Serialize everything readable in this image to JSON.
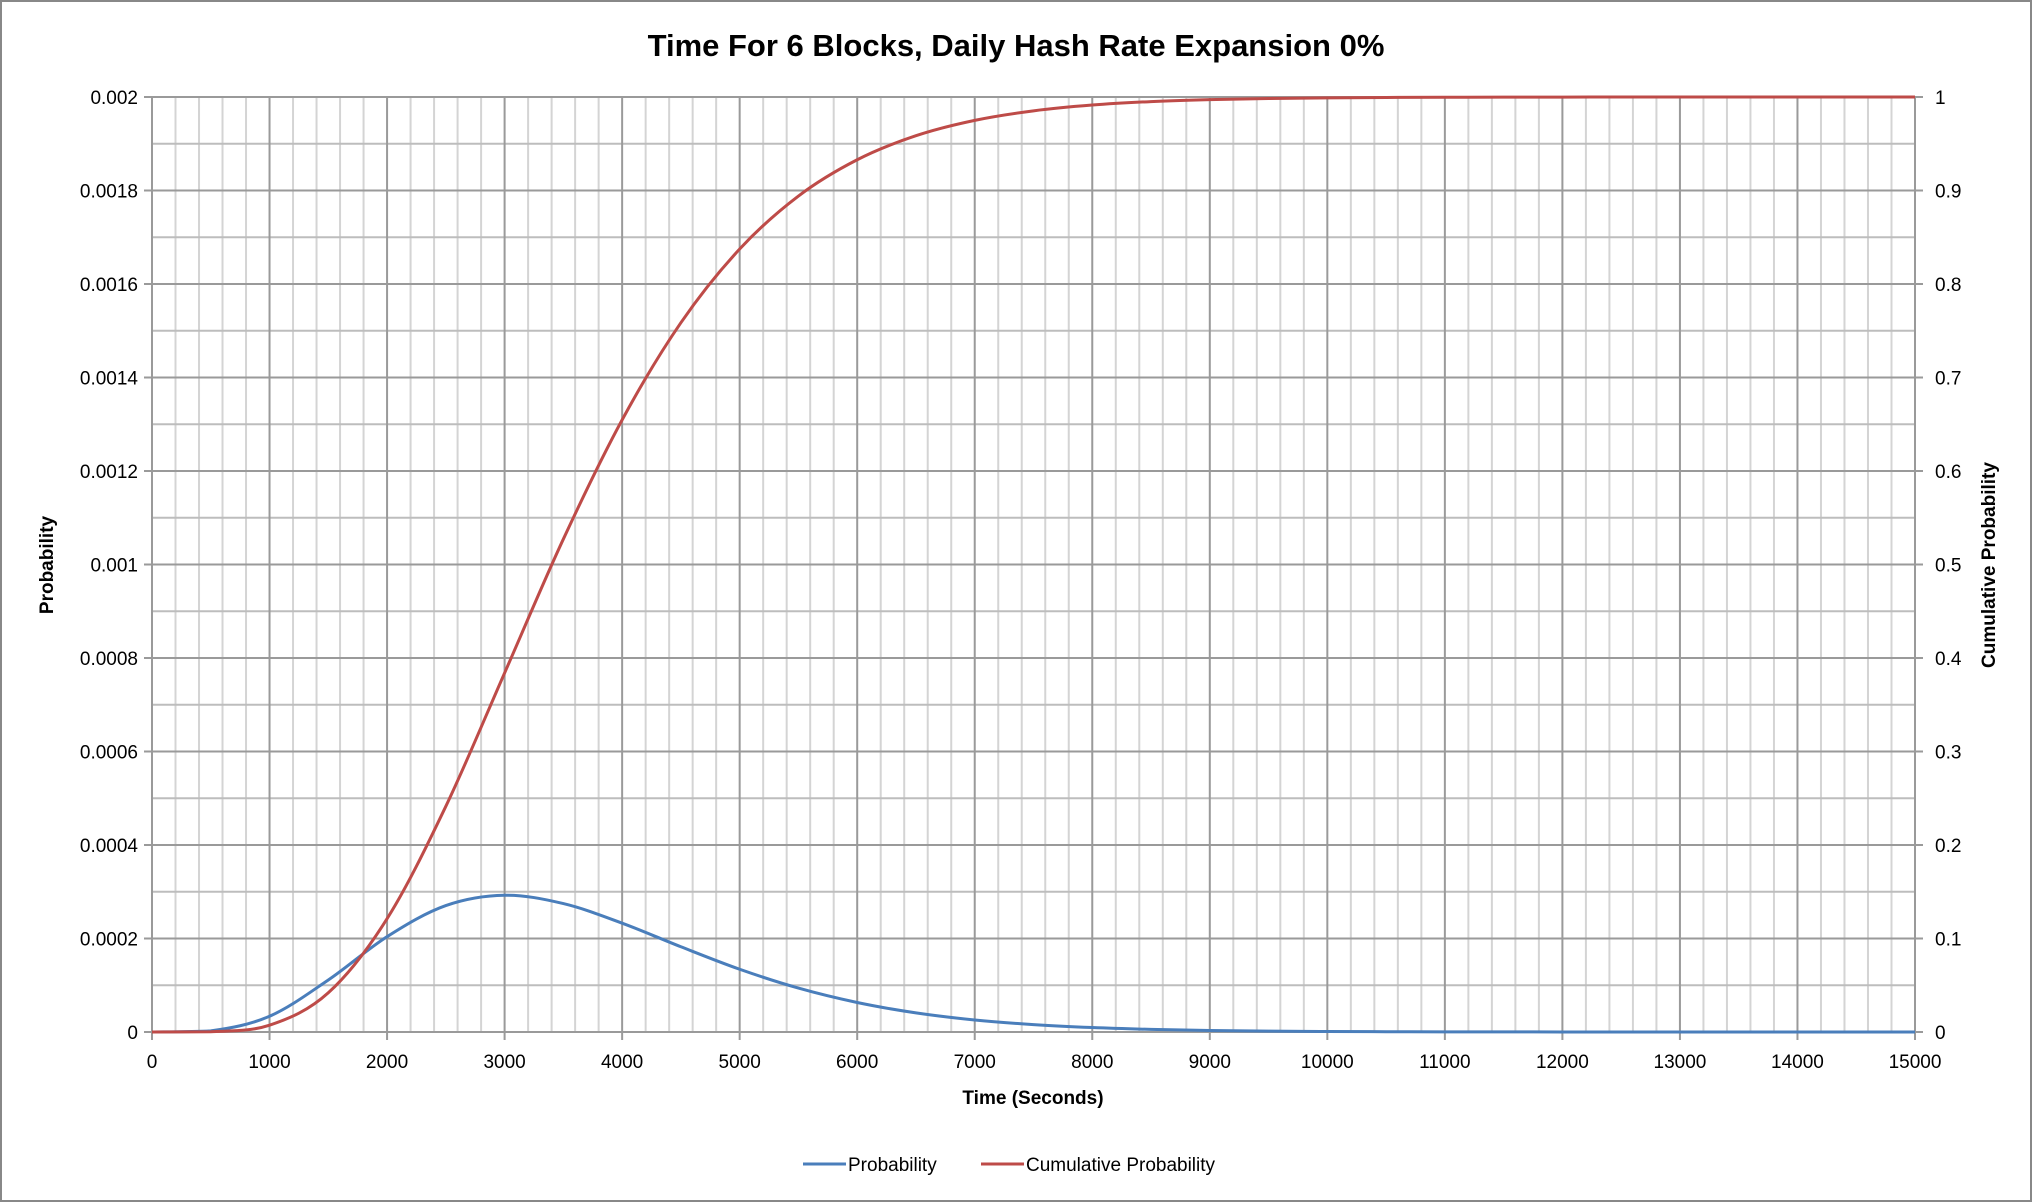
{
  "chart_data": {
    "type": "line",
    "title": "Time For 6 Blocks, Daily Hash Rate Expansion 0%",
    "xlabel": "Time (Seconds)",
    "ylabel": "Probability",
    "y2label": "Cumulative Probability",
    "xlim": [
      0,
      15000
    ],
    "ylim": [
      0,
      0.002
    ],
    "y2lim": [
      0,
      1
    ],
    "xticks": [
      "0",
      "1000",
      "2000",
      "3000",
      "4000",
      "5000",
      "6000",
      "7000",
      "8000",
      "9000",
      "10000",
      "11000",
      "12000",
      "13000",
      "14000",
      "15000"
    ],
    "yticks": [
      "0",
      "0.0002",
      "0.0004",
      "0.0006",
      "0.0008",
      "0.001",
      "0.0012",
      "0.0014",
      "0.0016",
      "0.0018",
      "0.002"
    ],
    "y2ticks": [
      "0",
      "0.1",
      "0.2",
      "0.3",
      "0.4",
      "0.5",
      "0.6",
      "0.7",
      "0.8",
      "0.9",
      "1"
    ],
    "grid": true,
    "legend_position": "bottom",
    "x": [
      0,
      500,
      1000,
      1500,
      2000,
      2500,
      3000,
      3500,
      4000,
      4500,
      5000,
      5500,
      6000,
      6500,
      7000,
      7500,
      8000,
      8500,
      9000,
      9500,
      10000,
      10500,
      11000,
      11500,
      12000,
      12500,
      13000,
      13500,
      14000,
      14500,
      15000
    ],
    "series": [
      {
        "name": "Probability",
        "axis": "left",
        "color": "#4a7ebb",
        "values": [
          0,
          2.4e-06,
          3.37e-05,
          0.0001113,
          0.0002039,
          0.0002704,
          0.0002925,
          0.0002747,
          0.0002328,
          0.0001823,
          0.0001342,
          9.39e-05,
          6.31e-05,
          4.09e-05,
          2.57e-05,
          1.58e-05,
          9.5e-06,
          5.6e-06,
          3.2e-06,
          1.8e-06,
          1e-06,
          6e-07,
          3e-07,
          2e-07,
          1e-07,
          0,
          0,
          0,
          0,
          0,
          0
        ]
      },
      {
        "name": "Cumulative Probability",
        "axis": "right",
        "color": "#be4b48",
        "values": [
          0,
          0.00026,
          0.0073,
          0.042,
          0.1212,
          0.2414,
          0.384,
          0.5272,
          0.6547,
          0.7586,
          0.8374,
          0.8941,
          0.9329,
          0.9586,
          0.975,
          0.9852,
          0.9914,
          0.9951,
          0.9972,
          0.9984,
          0.9991,
          0.9995,
          0.9997,
          0.9999,
          0.9999,
          1,
          1,
          1,
          1,
          1,
          1
        ]
      }
    ]
  }
}
